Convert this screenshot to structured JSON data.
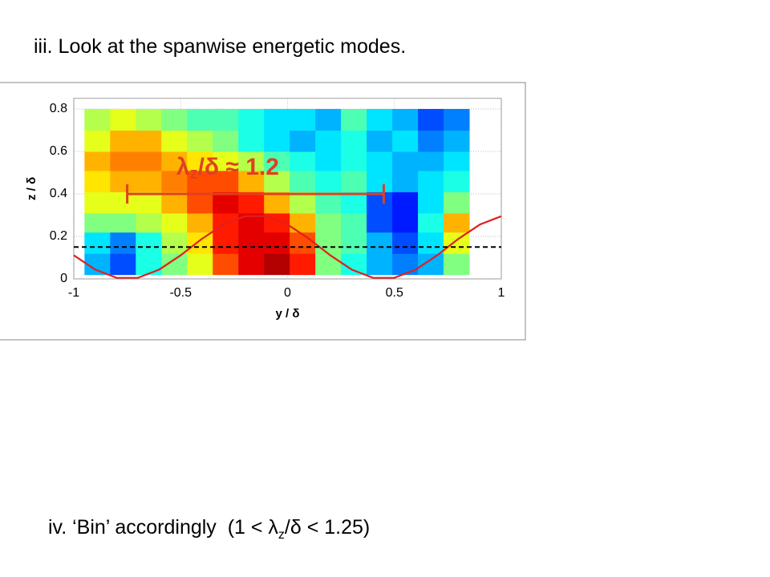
{
  "header": {
    "title": "iii. Look at the spanwise energetic modes."
  },
  "footer": {
    "parts": [
      "iv. ‘Bin’ accordingly  (1 < λ",
      "z",
      "/δ < 1.25)"
    ]
  },
  "chart_data": {
    "type": "heatmap",
    "xlabel": "y / δ",
    "ylabel": "z / δ",
    "xlim": [
      -1,
      1
    ],
    "ylim": [
      0,
      0.85
    ],
    "xticks": [
      -1,
      -0.5,
      0,
      0.5,
      1
    ],
    "yticks": [
      0,
      0.2,
      0.4,
      0.6,
      0.8
    ],
    "grid": true,
    "colormap": "jet",
    "xbins": [
      -0.95,
      -0.83,
      -0.71,
      -0.59,
      -0.47,
      -0.35,
      -0.23,
      -0.11,
      0.01,
      0.13,
      0.25,
      0.37,
      0.49,
      0.61,
      0.73,
      0.85
    ],
    "ybins": [
      0.02,
      0.12,
      0.22,
      0.31,
      0.41,
      0.51,
      0.6,
      0.7,
      0.8
    ],
    "values": [
      [
        0.3,
        0.2,
        0.4,
        0.5,
        0.6,
        0.8,
        0.9,
        0.95,
        0.85,
        0.5,
        0.4,
        0.3,
        0.25,
        0.3,
        0.5
      ],
      [
        0.35,
        0.25,
        0.4,
        0.55,
        0.65,
        0.85,
        0.9,
        0.9,
        0.8,
        0.5,
        0.45,
        0.3,
        0.2,
        0.35,
        0.6
      ],
      [
        0.5,
        0.5,
        0.55,
        0.6,
        0.7,
        0.85,
        0.9,
        0.85,
        0.7,
        0.5,
        0.45,
        0.2,
        0.15,
        0.4,
        0.7
      ],
      [
        0.6,
        0.6,
        0.6,
        0.7,
        0.8,
        0.9,
        0.85,
        0.7,
        0.55,
        0.45,
        0.4,
        0.2,
        0.15,
        0.35,
        0.5
      ],
      [
        0.65,
        0.7,
        0.7,
        0.75,
        0.8,
        0.8,
        0.7,
        0.55,
        0.45,
        0.4,
        0.45,
        0.35,
        0.3,
        0.35,
        0.4
      ],
      [
        0.7,
        0.75,
        0.75,
        0.7,
        0.65,
        0.6,
        0.55,
        0.45,
        0.4,
        0.35,
        0.4,
        0.35,
        0.3,
        0.3,
        0.35
      ],
      [
        0.6,
        0.7,
        0.7,
        0.6,
        0.55,
        0.5,
        0.4,
        0.35,
        0.3,
        0.35,
        0.4,
        0.3,
        0.35,
        0.25,
        0.3
      ],
      [
        0.55,
        0.6,
        0.55,
        0.5,
        0.45,
        0.45,
        0.4,
        0.35,
        0.35,
        0.3,
        0.45,
        0.35,
        0.3,
        0.2,
        0.25
      ]
    ],
    "lines": [
      {
        "color": "#e02020",
        "style": "solid",
        "x": [
          -1,
          -0.9,
          -0.8,
          -0.7,
          -0.6,
          -0.5,
          -0.4,
          -0.3,
          -0.2,
          -0.1,
          0,
          0.1,
          0.2,
          0.3,
          0.4,
          0.5,
          0.6,
          0.7,
          0.8,
          0.9,
          1
        ],
        "values": [
          0.111,
          0.044,
          0.005,
          0.005,
          0.044,
          0.111,
          0.189,
          0.256,
          0.295,
          0.295,
          0.256,
          0.189,
          0.111,
          0.044,
          0.005,
          0.005,
          0.044,
          0.111,
          0.189,
          0.256,
          0.295
        ]
      },
      {
        "color": "#000000",
        "style": "dashed",
        "x": [
          -1,
          1
        ],
        "values": [
          0.15,
          0.15
        ]
      }
    ],
    "annotation": {
      "parts": [
        "λ",
        "z",
        "/δ  ≈ 1.2"
      ],
      "color": "#e04020",
      "x": [
        -0.75,
        0.45
      ],
      "y": 0.4
    }
  }
}
